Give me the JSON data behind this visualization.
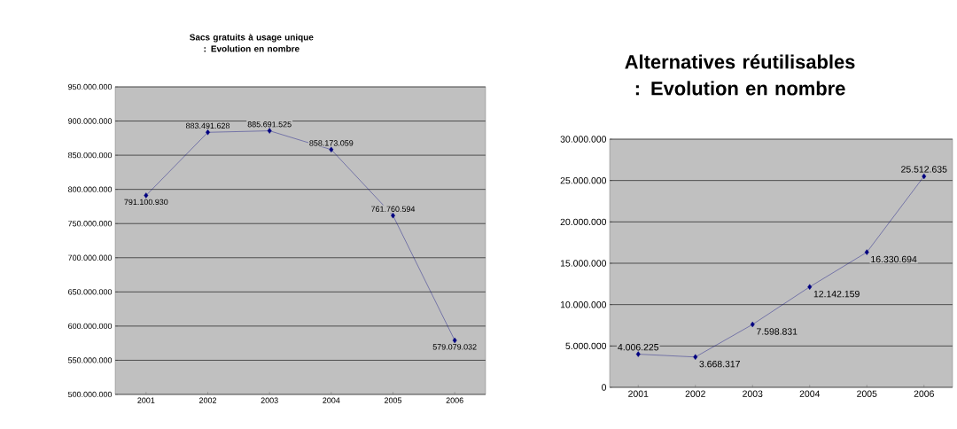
{
  "chart_data": [
    {
      "type": "line",
      "title": "Sacs gratuits à usage unique : Evolution en nombre",
      "categories": [
        "2001",
        "2002",
        "2003",
        "2004",
        "2005",
        "2006"
      ],
      "series": [
        {
          "color": "#000080",
          "values": [
            791100930,
            883491628,
            885691525,
            858173059,
            761760594,
            579079032
          ],
          "value_labels": [
            "791.100.930",
            "883.491.628",
            "885.691.525",
            "858.173.059",
            "761.760.594",
            "579.079.032"
          ]
        }
      ],
      "ylim": [
        500000000,
        950000000
      ],
      "yticks": [
        {
          "value": 500000000,
          "label": "500.000.000"
        },
        {
          "value": 550000000,
          "label": "550.000.000"
        },
        {
          "value": 600000000,
          "label": "600.000.000"
        },
        {
          "value": 650000000,
          "label": "650.000.000"
        },
        {
          "value": 700000000,
          "label": "700.000.000"
        },
        {
          "value": 750000000,
          "label": "750.000.000"
        },
        {
          "value": 800000000,
          "label": "800.000.000"
        },
        {
          "value": 850000000,
          "label": "850.000.000"
        },
        {
          "value": 900000000,
          "label": "900.000.000"
        },
        {
          "value": 950000000,
          "label": "950.000.000"
        }
      ],
      "grid": "y",
      "marker": "diamond",
      "line_style": "solid"
    },
    {
      "type": "line",
      "title": "Alternatives réutilisables : Evolution en nombre",
      "categories": [
        "2001",
        "2002",
        "2003",
        "2004",
        "2005",
        "2006"
      ],
      "series": [
        {
          "color": "#000080",
          "values": [
            4006225,
            3668317,
            7598831,
            12142159,
            16330694,
            25512635
          ],
          "value_labels": [
            "4.006.225",
            "3.668.317",
            "7.598.831",
            "12.142.159",
            "16.330.694",
            "25.512.635"
          ]
        }
      ],
      "ylim": [
        0,
        30000000
      ],
      "yticks": [
        0,
        {
          "value": 5000000,
          "label": "5.000.000"
        },
        {
          "value": 10000000,
          "label": "10.000.000"
        },
        {
          "value": 15000000,
          "label": "15.000.000"
        },
        {
          "value": 20000000,
          "label": "20.000.000"
        },
        {
          "value": 25000000,
          "label": "25.000.000"
        },
        {
          "value": 30000000,
          "label": "30.000.000"
        }
      ],
      "grid": "y",
      "marker": "diamond",
      "line_style": "solid"
    }
  ]
}
